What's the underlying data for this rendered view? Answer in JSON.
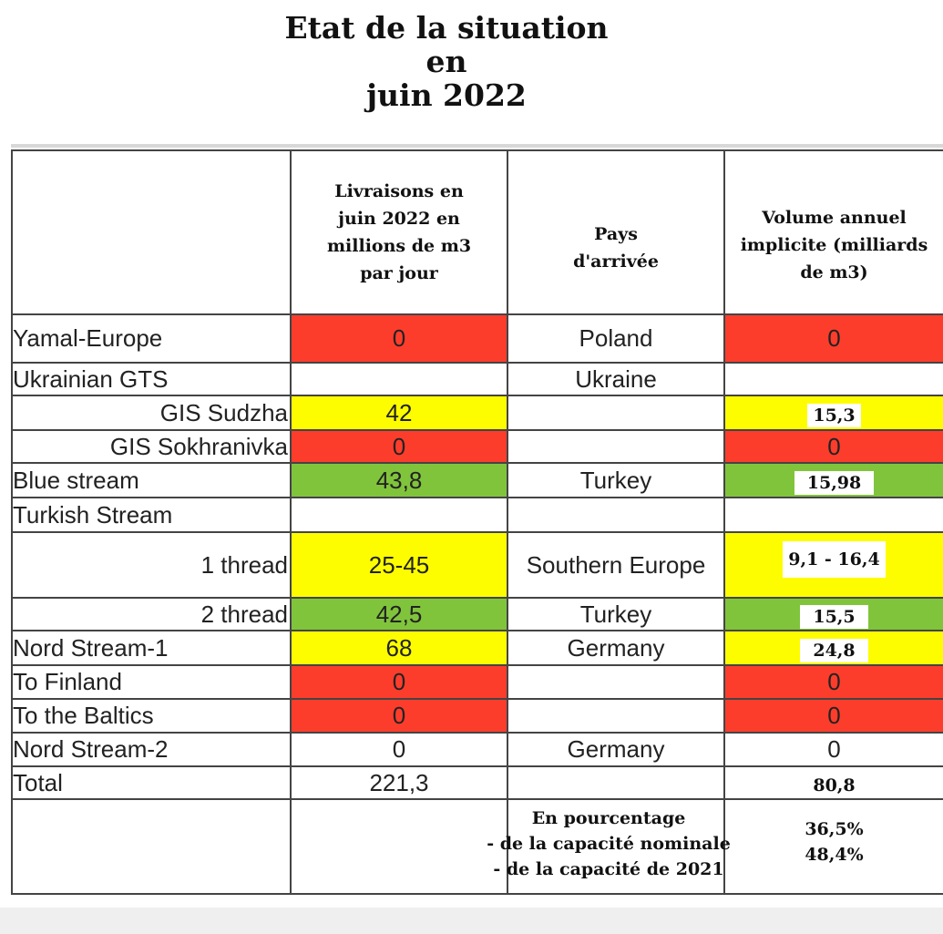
{
  "title": {
    "line1": "Etat de la situation",
    "line2": "en",
    "line3": "juin 2022"
  },
  "headers": {
    "deliveries": "Livraisons en juin 2022 en millions de m3 par jour",
    "country": "Pays d'arrivée",
    "volume": "Volume annuel implicite (milliards de m3)"
  },
  "rows": [
    {
      "name": "Yamal-Europe",
      "delivery": "0",
      "country": "Poland",
      "volume": "0"
    },
    {
      "name": "Ukrainian GTS",
      "delivery": "",
      "country": "Ukraine",
      "volume": ""
    },
    {
      "name": "GIS Sudzha",
      "delivery": "42",
      "country": "",
      "volume": "15,3"
    },
    {
      "name": "GIS Sokhranivka",
      "delivery": "0",
      "country": "",
      "volume": "0"
    },
    {
      "name": "Blue stream",
      "delivery": "43,8",
      "country": "Turkey",
      "volume": "15,98"
    },
    {
      "name": "Turkish Stream",
      "delivery": "",
      "country": "",
      "volume": ""
    },
    {
      "name": "1 thread",
      "delivery": "25-45",
      "country": "Southern Europe",
      "volume": "9,1 - 16,4"
    },
    {
      "name": "2 thread",
      "delivery": "42,5",
      "country": "Turkey",
      "volume": "15,5"
    },
    {
      "name": "Nord Stream-1",
      "delivery": "68",
      "country": "Germany",
      "volume": "24,8"
    },
    {
      "name": "To Finland",
      "delivery": "0",
      "country": "",
      "volume": "0"
    },
    {
      "name": "To the Baltics",
      "delivery": "0",
      "country": "",
      "volume": "0"
    },
    {
      "name": "Nord Stream-2",
      "delivery": "0",
      "country": "Germany",
      "volume": "0"
    },
    {
      "name": "Total",
      "delivery": "221,3",
      "country": "",
      "volume": "80,8"
    }
  ],
  "percentages": {
    "label_line1": "En pourcentage",
    "label_line2": "- de la capacité nominale",
    "label_line3": "- de la capacité de 2021",
    "value1": "36,5%",
    "value2": "48,4%"
  },
  "colors": {
    "red": "#fd3d2c",
    "yellow": "#fdfd00",
    "green": "#80c43c"
  }
}
